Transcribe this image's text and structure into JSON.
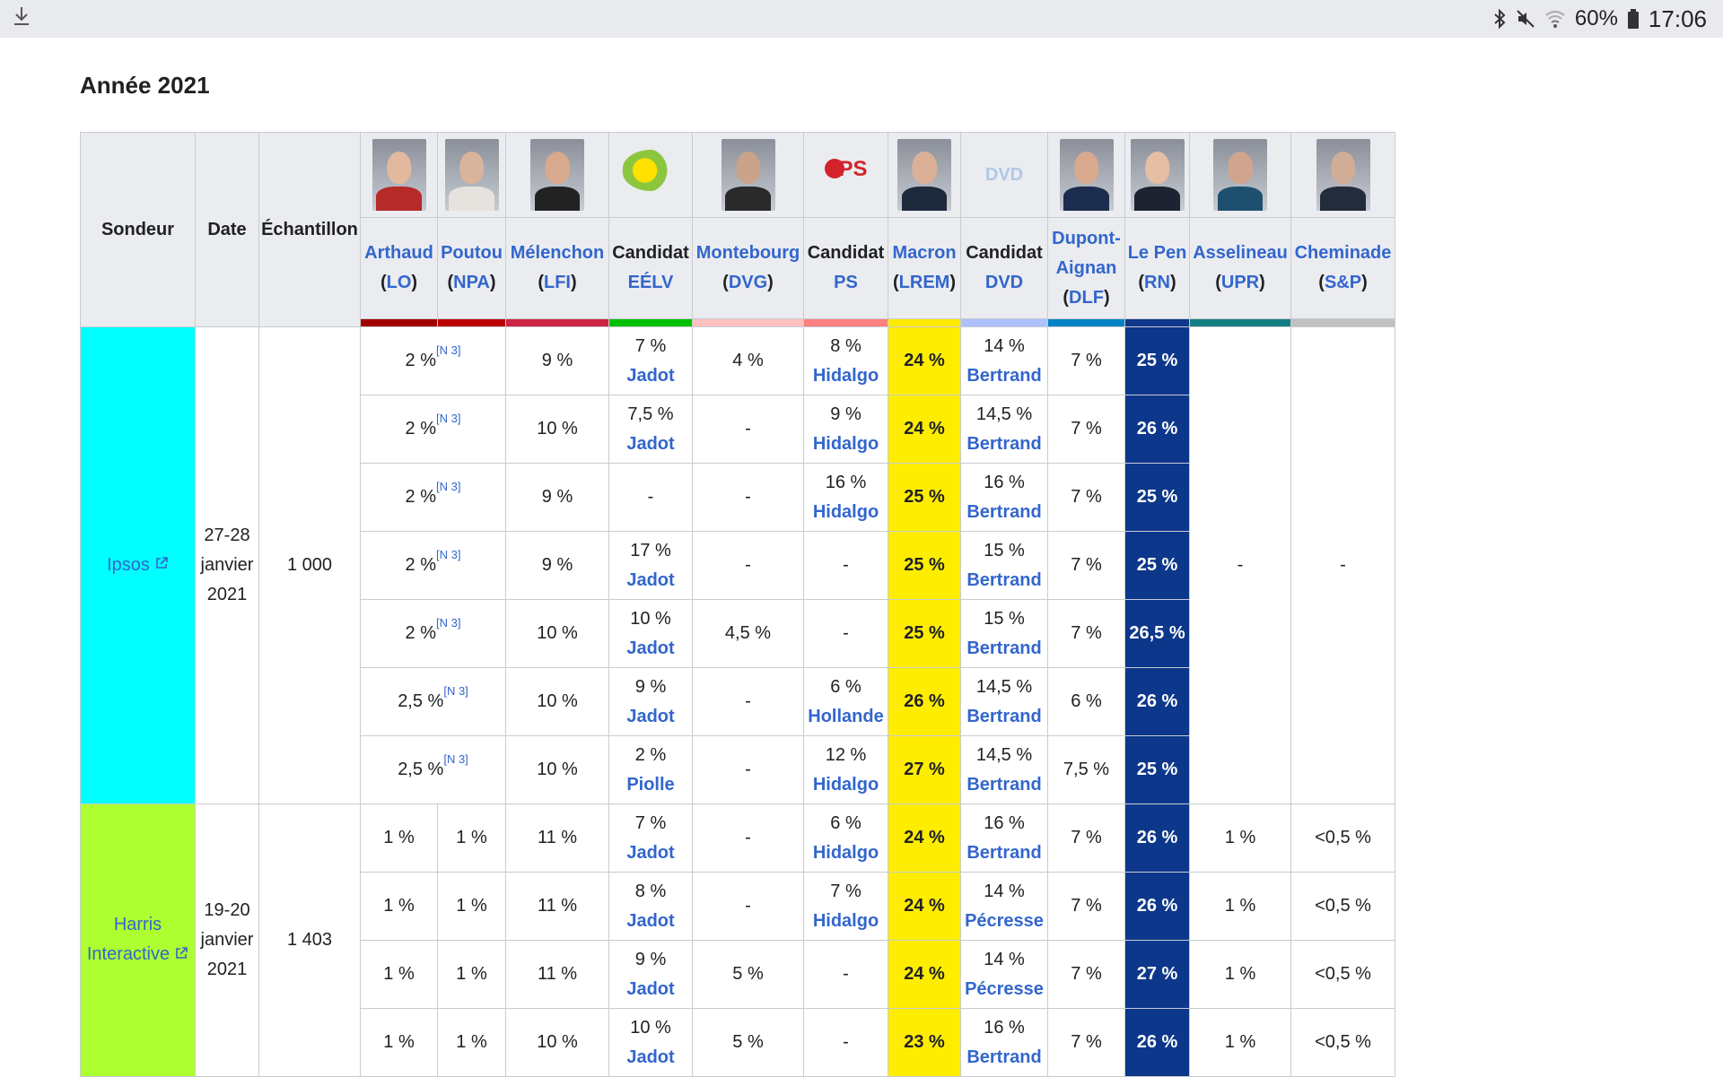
{
  "statusbar": {
    "battery": "60%",
    "time": "17:06",
    "icons": [
      "download-icon",
      "bluetooth-icon",
      "mute-icon",
      "wifi-icon",
      "battery-icon"
    ]
  },
  "section_title": "Année 2021",
  "colors": {
    "header_bg": "#eaecf0",
    "link": "#3366cc",
    "macron": "#ffed00",
    "lepen": "#0d378a",
    "ipsos": "#00ffff",
    "harris": "#adff2f"
  },
  "table": {
    "head": {
      "sondeur": "Sondeur",
      "date": "Date",
      "echantillon": "Échantillon"
    },
    "candidates": [
      {
        "name": "Arthaud",
        "open": "(",
        "party": "LO",
        "close": ")",
        "bar": "#a10000",
        "media": "photo",
        "c1": "#e2b99e",
        "c2": "#b62a2a"
      },
      {
        "name": "Poutou",
        "open": "(",
        "party": "NPA",
        "close": ")",
        "bar": "#bb0000",
        "media": "photo",
        "c1": "#d9b49c",
        "c2": "#e6e2dd"
      },
      {
        "name": "Mélenchon",
        "open": "(",
        "party": "LFI",
        "close": ")",
        "bar": "#cc2443",
        "media": "photo",
        "c1": "#d7a98d",
        "c2": "#222222"
      },
      {
        "name": "Candidat",
        "open": "",
        "party": "EÉLV",
        "close": "",
        "bar": "#00c000",
        "media": "logo-eelv",
        "c1": "",
        "c2": ""
      },
      {
        "name": "Montebourg",
        "open": "(",
        "party": "DVG",
        "close": ")",
        "bar": "#ffc0c0",
        "media": "photo",
        "c1": "#caa38a",
        "c2": "#2a2a2a"
      },
      {
        "name": "Candidat",
        "open": "",
        "party": "PS",
        "close": "",
        "bar": "#ff8080",
        "media": "logo-ps",
        "c1": "",
        "c2": ""
      },
      {
        "name": "Macron",
        "open": "(",
        "party": "LREM",
        "close": ")",
        "bar": "#ffeb00",
        "media": "photo",
        "c1": "#dcb097",
        "c2": "#1e2a3c"
      },
      {
        "name": "Candidat",
        "open": "",
        "party": "DVD",
        "close": "",
        "bar": "#adc1fd",
        "media": "dvd",
        "c1": "",
        "c2": ""
      },
      {
        "name": "Dupont-Aignan",
        "open": "(",
        "party": "DLF",
        "close": ")",
        "bar": "#0082c4",
        "media": "photo",
        "c1": "#d9a98e",
        "c2": "#1c2d4f"
      },
      {
        "name": "Le Pen",
        "open": "(",
        "party": "RN",
        "close": ")",
        "bar": "#0d378a",
        "media": "photo",
        "c1": "#e4bfa4",
        "c2": "#1d2330"
      },
      {
        "name": "Asselineau",
        "open": "(",
        "party": "UPR",
        "close": ")",
        "bar": "#137e82",
        "media": "photo",
        "c1": "#cfa590",
        "c2": "#1f4f6f"
      },
      {
        "name": "Cheminade",
        "open": "(",
        "party": "S&P",
        "close": ")",
        "bar": "#c0c0c0",
        "media": "photo",
        "c1": "#d1ad97",
        "c2": "#232c3a"
      }
    ],
    "dvd_label": "DVD",
    "groups": [
      {
        "pollster": "Ipsos",
        "date": "27-28 janvier 2021",
        "sample": "1 000",
        "rows": [
          {
            "lo_npa": "2 %",
            "note": "[N 3]",
            "lfi": "9 %",
            "eelv": "7 %",
            "eelv_name": "Jadot",
            "dvg": "4 %",
            "ps": "8 %",
            "ps_name": "Hidalgo",
            "lrem": "24 %",
            "dvd": "14 %",
            "dvd_name": "Bertrand",
            "dlf": "7 %",
            "rn": "25 %"
          },
          {
            "lo_npa": "2 %",
            "note": "[N 3]",
            "lfi": "10 %",
            "eelv": "7,5 %",
            "eelv_name": "Jadot",
            "dvg": "-",
            "ps": "9 %",
            "ps_name": "Hidalgo",
            "lrem": "24 %",
            "dvd": "14,5 %",
            "dvd_name": "Bertrand",
            "dlf": "7 %",
            "rn": "26 %"
          },
          {
            "lo_npa": "2 %",
            "note": "[N 3]",
            "lfi": "9 %",
            "eelv": "-",
            "eelv_name": "",
            "dvg": "-",
            "ps": "16 %",
            "ps_name": "Hidalgo",
            "lrem": "25 %",
            "dvd": "16 %",
            "dvd_name": "Bertrand",
            "dlf": "7 %",
            "rn": "25 %"
          },
          {
            "lo_npa": "2 %",
            "note": "[N 3]",
            "lfi": "9 %",
            "eelv": "17 %",
            "eelv_name": "Jadot",
            "dvg": "-",
            "ps": "-",
            "ps_name": "",
            "lrem": "25 %",
            "dvd": "15 %",
            "dvd_name": "Bertrand",
            "dlf": "7 %",
            "rn": "25 %"
          },
          {
            "lo_npa": "2 %",
            "note": "[N 3]",
            "lfi": "10 %",
            "eelv": "10 %",
            "eelv_name": "Jadot",
            "dvg": "4,5 %",
            "ps": "-",
            "ps_name": "",
            "lrem": "25 %",
            "dvd": "15 %",
            "dvd_name": "Bertrand",
            "dlf": "7 %",
            "rn": "26,5 %"
          },
          {
            "lo_npa": "2,5 %",
            "note": "[N 3]",
            "lfi": "10 %",
            "eelv": "9 %",
            "eelv_name": "Jadot",
            "dvg": "-",
            "ps": "6 %",
            "ps_name": "Hollande",
            "lrem": "26 %",
            "dvd": "14,5 %",
            "dvd_name": "Bertrand",
            "dlf": "6 %",
            "rn": "26 %"
          },
          {
            "lo_npa": "2,5 %",
            "note": "[N 3]",
            "lfi": "10 %",
            "eelv": "2 %",
            "eelv_name": "Piolle",
            "dvg": "-",
            "ps": "12 %",
            "ps_name": "Hidalgo",
            "lrem": "27 %",
            "dvd": "14,5 %",
            "dvd_name": "Bertrand",
            "dlf": "7,5 %",
            "rn": "25 %"
          }
        ],
        "upr": "-",
        "sp": "-"
      },
      {
        "pollster": "Harris Interactive",
        "date": "19-20 janvier 2021",
        "sample": "1 403",
        "rows": [
          {
            "lo": "1 %",
            "npa": "1 %",
            "lfi": "11 %",
            "eelv": "7 %",
            "eelv_name": "Jadot",
            "dvg": "-",
            "ps": "6 %",
            "ps_name": "Hidalgo",
            "lrem": "24 %",
            "dvd": "16 %",
            "dvd_name": "Bertrand",
            "dlf": "7 %",
            "rn": "26 %",
            "upr": "1 %",
            "sp": "<0,5 %"
          },
          {
            "lo": "1 %",
            "npa": "1 %",
            "lfi": "11 %",
            "eelv": "8 %",
            "eelv_name": "Jadot",
            "dvg": "-",
            "ps": "7 %",
            "ps_name": "Hidalgo",
            "lrem": "24 %",
            "dvd": "14 %",
            "dvd_name": "Pécresse",
            "dlf": "7 %",
            "rn": "26 %",
            "upr": "1 %",
            "sp": "<0,5 %"
          },
          {
            "lo": "1 %",
            "npa": "1 %",
            "lfi": "11 %",
            "eelv": "9 %",
            "eelv_name": "Jadot",
            "dvg": "5 %",
            "ps": "-",
            "ps_name": "",
            "lrem": "24 %",
            "dvd": "14 %",
            "dvd_name": "Pécresse",
            "dlf": "7 %",
            "rn": "27 %",
            "upr": "1 %",
            "sp": "<0,5 %"
          },
          {
            "lo": "1 %",
            "npa": "1 %",
            "lfi": "10 %",
            "eelv": "10 %",
            "eelv_name": "Jadot",
            "dvg": "5 %",
            "ps": "-",
            "ps_name": "",
            "lrem": "23 %",
            "dvd": "16 %",
            "dvd_name": "Bertrand",
            "dlf": "7 %",
            "rn": "26 %",
            "upr": "1 %",
            "sp": "<0,5 %"
          }
        ]
      }
    ]
  }
}
